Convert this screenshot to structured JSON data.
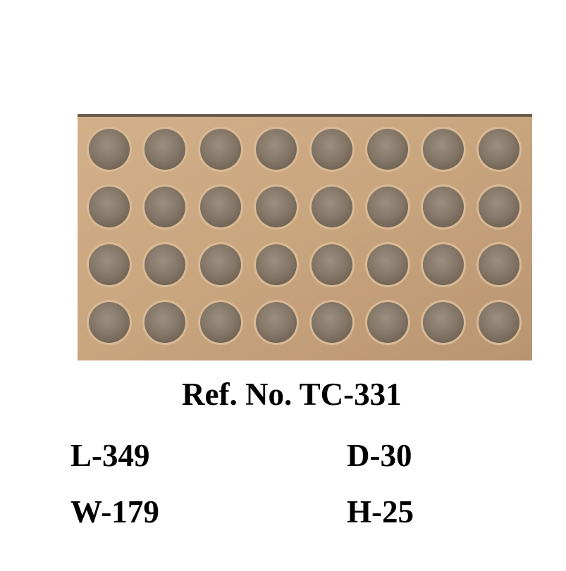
{
  "product": {
    "image_subject": "tray-photo",
    "tray_color": "#c9a57e",
    "cavity_color": "#8b7d6d",
    "rows": 4,
    "columns": 8
  },
  "labels": {
    "ref": "Ref. No. TC-331",
    "length": "L-349",
    "depth": "D-30",
    "width": "W-179",
    "height": "H-25"
  }
}
